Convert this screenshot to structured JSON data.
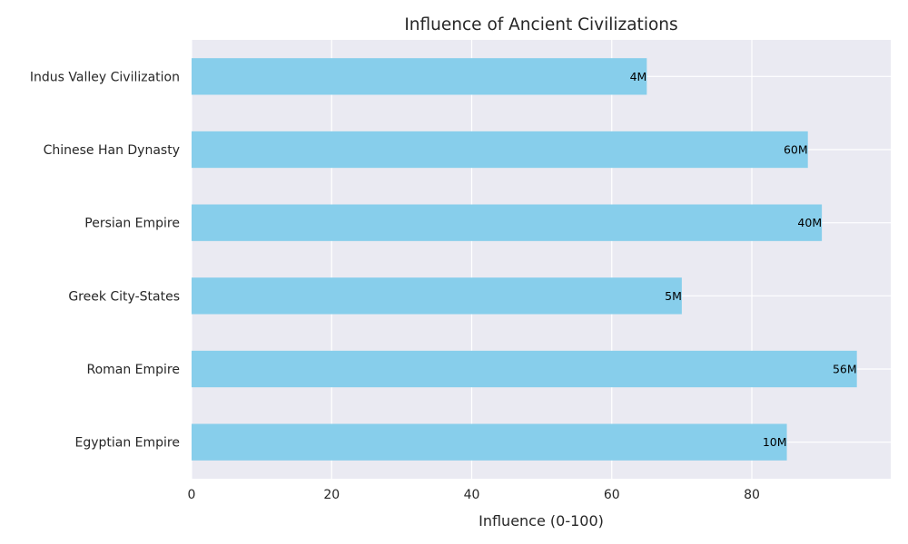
{
  "chart_data": {
    "type": "bar",
    "orientation": "horizontal",
    "title": "Influence of Ancient Civilizations",
    "xlabel": "Influence (0-100)",
    "ylabel": "",
    "xlim": [
      0,
      100
    ],
    "xticks": [
      0,
      20,
      40,
      60,
      80
    ],
    "xtick_labels": [
      "0",
      "20",
      "40",
      "60",
      "80"
    ],
    "grid": true,
    "categories": [
      "Egyptian Empire",
      "Roman Empire",
      "Greek City-States",
      "Persian Empire",
      "Chinese Han Dynasty",
      "Indus Valley Civilization"
    ],
    "values": [
      85,
      95,
      70,
      90,
      88,
      65
    ],
    "data_labels": [
      "10M",
      "56M",
      "5M",
      "40M",
      "60M",
      "4M"
    ],
    "colors": {
      "bar": "#87ceeb",
      "background": "#eaeaf2",
      "grid": "#ffffff"
    }
  }
}
